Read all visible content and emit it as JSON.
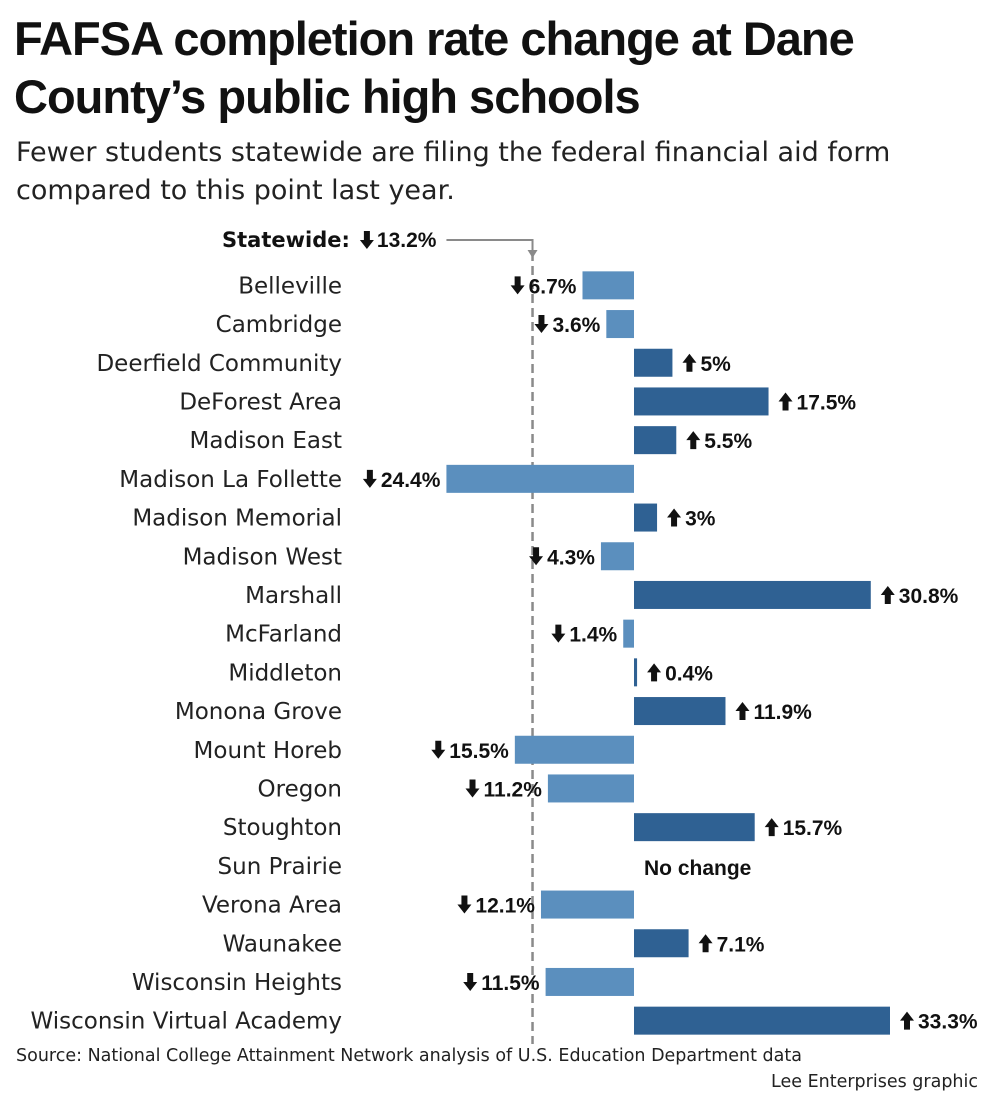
{
  "title": "FAFSA completion rate change at Dane County’s public high schools",
  "subtitle": "Fewer students statewide are filing the federal financial aid form compared to this point last year.",
  "source": "Source: National College Attainment Network analysis of U.S. Education Department data",
  "credit": "Lee Enterprises graphic",
  "colors": {
    "decrease": "#5b8fbe",
    "increase": "#2f6193",
    "reference_line": "#8a8a8a",
    "arrow": "#111111"
  },
  "chart_data": {
    "type": "bar",
    "orientation": "horizontal",
    "unit": "%",
    "categories": [
      "Belleville",
      "Cambridge",
      "Deerfield Community",
      "DeForest Area",
      "Madison East",
      "Madison La Follette",
      "Madison Memorial",
      "Madison West",
      "Marshall",
      "McFarland",
      "Middleton",
      "Monona Grove",
      "Mount Horeb",
      "Oregon",
      "Stoughton",
      "Sun Prairie",
      "Verona Area",
      "Waunakee",
      "Wisconsin Heights",
      "Wisconsin Virtual Academy"
    ],
    "values": [
      -6.7,
      -3.6,
      5,
      17.5,
      5.5,
      -24.4,
      3,
      -4.3,
      30.8,
      -1.4,
      0.4,
      11.9,
      -15.5,
      -11.2,
      15.7,
      0,
      -12.1,
      7.1,
      -11.5,
      33.3
    ],
    "value_labels": [
      "6.7%",
      "3.6%",
      "5%",
      "17.5%",
      "5.5%",
      "24.4%",
      "3%",
      "4.3%",
      "30.8%",
      "1.4%",
      "0.4%",
      "11.9%",
      "15.5%",
      "11.2%",
      "15.7%",
      "No change",
      "12.1%",
      "7.1%",
      "11.5%",
      "33.3%"
    ],
    "reference": {
      "label": "Statewide:",
      "value": -13.2,
      "value_label": "13.2%"
    },
    "xlim": [
      -24.4,
      33.3
    ],
    "grid": false,
    "legend": "none"
  }
}
